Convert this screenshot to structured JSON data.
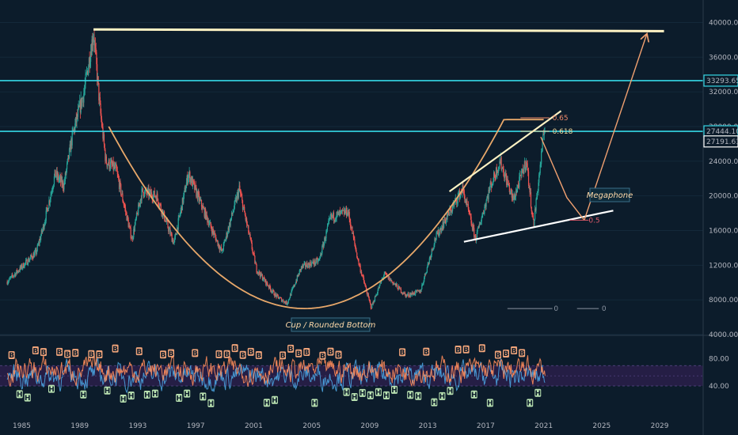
{
  "chart_data": [
    {
      "type": "line",
      "title": "",
      "xlabel": "",
      "ylabel": "",
      "xlim": [
        1983.5,
        2032.0
      ],
      "ylim": [
        4000,
        41500
      ],
      "x_ticks": [
        "1985",
        "1989",
        "1993",
        "1997",
        "2001",
        "2005",
        "2009",
        "2013",
        "2017",
        "2021",
        "2025",
        "2029"
      ],
      "y_ticks": [
        "40000.00",
        "36000.00",
        "32000.00",
        "28000.00",
        "24000.00",
        "20000.00",
        "16000.00",
        "12000.00",
        "8000.00",
        "4000.00"
      ],
      "price_path": [
        [
          1984.0,
          10100
        ],
        [
          1985.0,
          11800
        ],
        [
          1986.0,
          13500
        ],
        [
          1986.5,
          16500
        ],
        [
          1987.3,
          22500
        ],
        [
          1987.9,
          21200
        ],
        [
          1988.5,
          27000
        ],
        [
          1989.3,
          32000
        ],
        [
          1989.95,
          38900
        ],
        [
          1990.4,
          30000
        ],
        [
          1990.8,
          24000
        ],
        [
          1991.5,
          23000
        ],
        [
          1992.6,
          15000
        ],
        [
          1993.3,
          20500
        ],
        [
          1994.3,
          20000
        ],
        [
          1995.5,
          14500
        ],
        [
          1996.5,
          22600
        ],
        [
          1997.5,
          18500
        ],
        [
          1998.8,
          13500
        ],
        [
          2000.0,
          20800
        ],
        [
          2001.2,
          11500
        ],
        [
          2002.5,
          8500
        ],
        [
          2003.3,
          7600
        ],
        [
          2004.3,
          11800
        ],
        [
          2005.5,
          12500
        ],
        [
          2006.3,
          17500
        ],
        [
          2007.5,
          18200
        ],
        [
          2008.2,
          12500
        ],
        [
          2009.1,
          7100
        ],
        [
          2010.0,
          11000
        ],
        [
          2011.5,
          8500
        ],
        [
          2012.5,
          9000
        ],
        [
          2013.5,
          15000
        ],
        [
          2015.4,
          20800
        ],
        [
          2016.3,
          15000
        ],
        [
          2017.3,
          21000
        ],
        [
          2018.0,
          24000
        ],
        [
          2018.9,
          19500
        ],
        [
          2019.8,
          24100
        ],
        [
          2020.3,
          16600
        ],
        [
          2020.8,
          24000
        ],
        [
          2021.1,
          28500
        ]
      ],
      "horizontal_levels": [
        {
          "value": 33293.65,
          "label": "33293.65",
          "color": "#35d7e6"
        },
        {
          "value": 27444.1,
          "label": "27444.10",
          "color": "#35d7e6"
        }
      ],
      "price_badges": [
        {
          "value": 27191.61,
          "label": "27191.61",
          "color": "#ffffff"
        }
      ],
      "fib_levels": [
        {
          "label": "0.65",
          "value": 29000
        },
        {
          "label": "0.618",
          "value": 27444
        },
        {
          "label": "0.5",
          "value": 17200
        },
        {
          "label": "0",
          "value": 7000
        },
        {
          "label": "0",
          "value": 7000
        }
      ],
      "annotations": [
        {
          "text": "Cup / Rounded Bottom"
        },
        {
          "text": "Megaphone"
        }
      ],
      "colors": {
        "candle_up": "#26a69a",
        "candle_down": "#ef5350",
        "trendline": "#ffe8c0",
        "cup": "#e8a86a",
        "projection": "#f0a070",
        "level": "#35d7e6"
      }
    },
    {
      "type": "line",
      "title": "",
      "ylim": [
        5,
        110
      ],
      "y_ticks": [
        "80.00",
        "40.00"
      ],
      "band": [
        40,
        70
      ],
      "series": [
        {
          "color": "#4aa3df"
        },
        {
          "color": "#ff8c5a"
        }
      ],
      "signals": {
        "buy_label": "B",
        "sell_label": "H"
      }
    }
  ]
}
